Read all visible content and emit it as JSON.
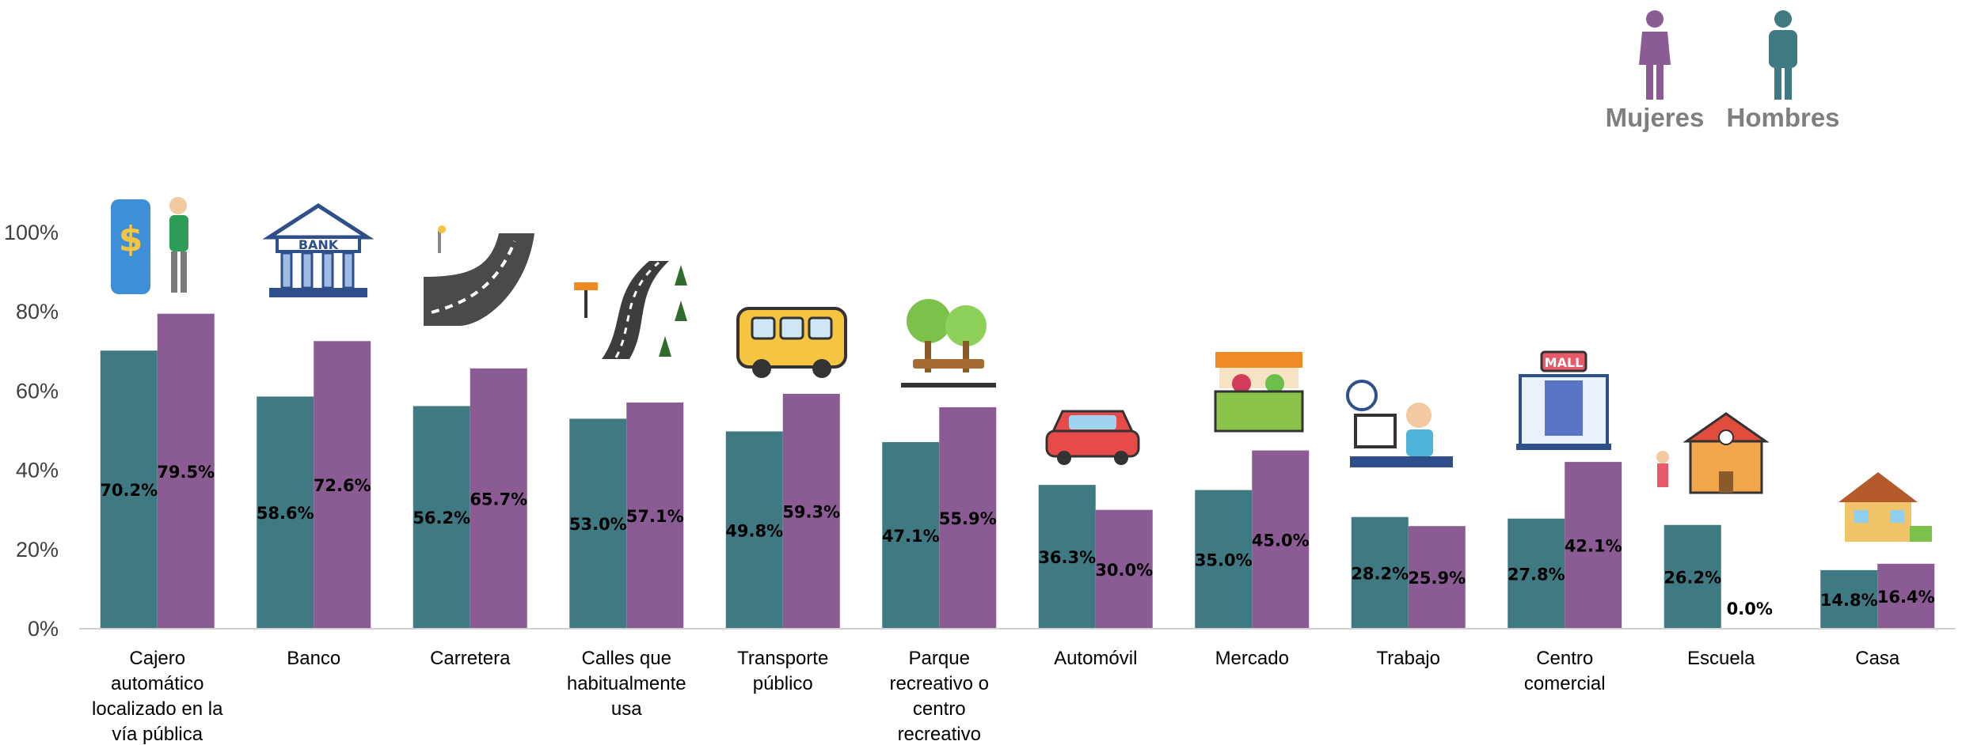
{
  "chart_data": {
    "type": "bar",
    "title": "",
    "xlabel": "",
    "ylabel": "",
    "ylim": [
      0,
      100
    ],
    "yticks": [
      "0%",
      "20%",
      "40%",
      "60%",
      "80%",
      "100%"
    ],
    "grid": false,
    "legend_position": "top-right",
    "categories": [
      "Cajero automático localizado en la vía pública",
      "Banco",
      "Carretera",
      "Calles que habitualmente usa",
      "Transporte público",
      "Parque recreativo o centro recreativo",
      "Automóvil",
      "Mercado",
      "Trabajo",
      "Centro comercial",
      "Escuela",
      "Casa"
    ],
    "category_lines": [
      [
        "Cajero",
        "automático",
        "localizado en la",
        "vía pública"
      ],
      [
        "Banco"
      ],
      [
        "Carretera"
      ],
      [
        "Calles que",
        "habitualmente",
        "usa"
      ],
      [
        "Transporte",
        "público"
      ],
      [
        "Parque",
        "recreativo o",
        "centro",
        "recreativo"
      ],
      [
        "Automóvil"
      ],
      [
        "Mercado"
      ],
      [
        "Trabajo"
      ],
      [
        "Centro",
        "comercial"
      ],
      [
        "Escuela"
      ],
      [
        "Casa"
      ]
    ],
    "category_icons": [
      "atm-icon",
      "bank-icon",
      "road-icon",
      "street-icon",
      "bus-icon",
      "park-icon",
      "car-icon",
      "market-icon",
      "office-worker-icon",
      "mall-icon",
      "school-icon",
      "house-icon"
    ],
    "series": [
      {
        "color": "#3f7a83",
        "values": [
          70.2,
          58.6,
          56.2,
          53.0,
          49.8,
          47.1,
          36.3,
          35.0,
          28.2,
          27.8,
          26.2,
          14.8
        ],
        "labels": [
          "70.2%",
          "58.6%",
          "56.2%",
          "53.0%",
          "49.8%",
          "47.1%",
          "36.3%",
          "35.0%",
          "28.2%",
          "27.8%",
          "26.2%",
          "14.8%"
        ]
      },
      {
        "color": "#8b5c93",
        "values": [
          79.5,
          72.6,
          65.7,
          57.1,
          59.3,
          55.9,
          30.0,
          45.0,
          25.9,
          42.1,
          0.0,
          16.4
        ],
        "labels": [
          "79.5%",
          "72.6%",
          "65.7%",
          "57.1%",
          "59.3%",
          "55.9%",
          "30.0%",
          "45.0%",
          "25.9%",
          "42.1%",
          "0.0%",
          "16.4%"
        ]
      }
    ],
    "legend": [
      {
        "label": "Mujeres",
        "color": "#8b5c93",
        "icon": "woman-icon"
      },
      {
        "label": "Hombres",
        "color": "#3f7a83",
        "icon": "man-icon"
      }
    ]
  }
}
